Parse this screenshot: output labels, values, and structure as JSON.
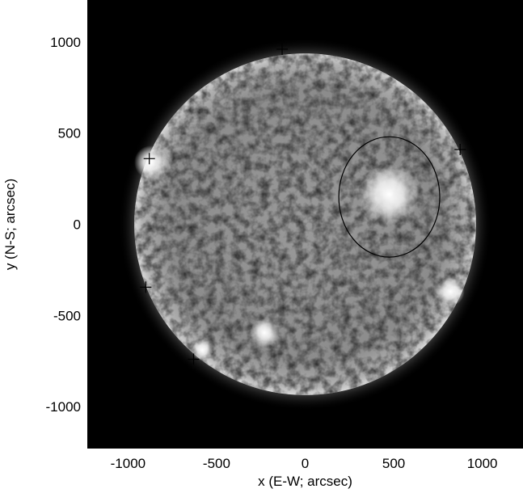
{
  "figure": {
    "xlabel": "x (E-W; arcsec)",
    "ylabel": "y (N-S; arcsec)",
    "xticks": [
      "-1000",
      "-500",
      "0",
      "500",
      "1000"
    ],
    "yticks": [
      "1000",
      "500",
      "0",
      "-500",
      "-1000"
    ]
  },
  "chart_data": {
    "type": "image",
    "subject": "full-disk solar image",
    "xlim": [
      -1230,
      1230
    ],
    "ylim": [
      -1230,
      1230
    ],
    "xtick_values": [
      -1000,
      -500,
      0,
      500,
      1000
    ],
    "ytick_values": [
      1000,
      500,
      0,
      -500,
      -1000
    ],
    "disk_center": [
      0,
      0
    ],
    "disk_radius": 965,
    "ellipse_marker": {
      "center": [
        475,
        150
      ],
      "semi_axes": [
        285,
        330
      ]
    },
    "cross_markers": [
      [
        -130,
        960
      ],
      [
        875,
        410
      ],
      [
        -880,
        360
      ],
      [
        -900,
        -345
      ],
      [
        -630,
        -740
      ]
    ],
    "bright_regions": [
      {
        "center": [
          475,
          165
        ],
        "radius": 170
      },
      {
        "center": [
          -870,
          340
        ],
        "radius": 95
      },
      {
        "center": [
          -230,
          -595
        ],
        "radius": 80
      },
      {
        "center": [
          -580,
          -690
        ],
        "radius": 60
      },
      {
        "center": [
          820,
          -370
        ],
        "radius": 80
      }
    ],
    "colors": {
      "background": "#000000",
      "disk": "#8a8a8a",
      "frame": "#ffffff"
    }
  }
}
